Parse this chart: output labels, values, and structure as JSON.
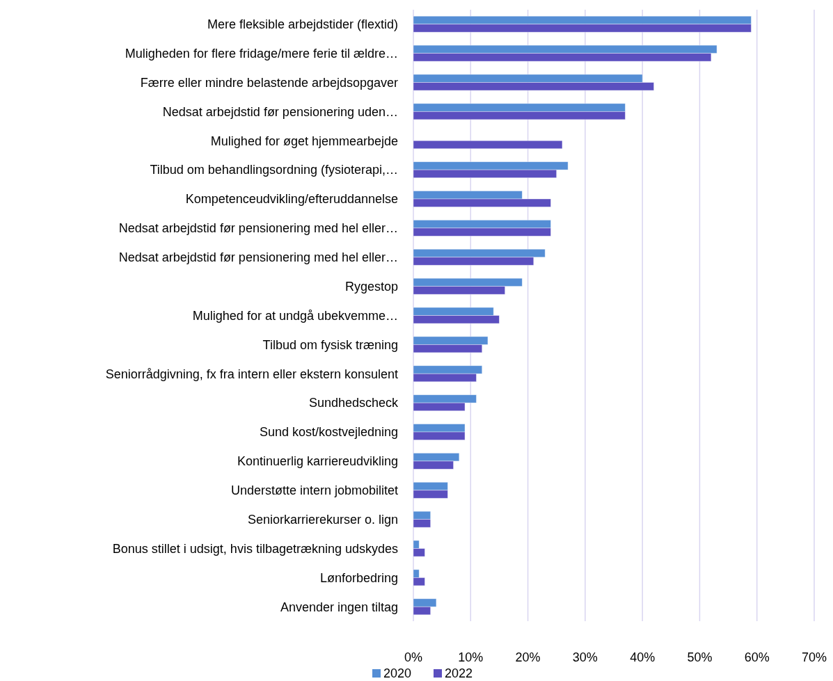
{
  "chart_data": {
    "type": "bar",
    "orientation": "horizontal",
    "categories": [
      "Mere fleksible arbejdstider (flextid)",
      "Muligheden for flere fridage/mere ferie til ældre…",
      "Færre eller mindre belastende arbejdsopgaver",
      "Nedsat arbejdstid før pensionering uden…",
      "Mulighed for øget hjemmearbejde",
      "Tilbud om behandlingsordning (fysioterapi,…",
      "Kompetenceudvikling/efteruddannelse",
      "Nedsat arbejdstid før pensionering med hel eller…",
      "Nedsat arbejdstid før pensionering med hel eller…",
      "Rygestop",
      "Mulighed for at undgå ubekvemme…",
      "Tilbud om fysisk træning",
      "Seniorrådgivning, fx fra intern eller ekstern konsulent",
      "Sundhedscheck",
      "Sund kost/kostvejledning",
      "Kontinuerlig karriereudvikling",
      "Understøtte intern jobmobilitet",
      "Seniorkarrierekurser o. lign",
      "Bonus stillet i udsigt, hvis tilbagetrækning udskydes",
      "Lønforbedring",
      "Anvender ingen tiltag"
    ],
    "series": [
      {
        "name": "2020",
        "color": "#558ed5",
        "values": [
          59,
          53,
          40,
          37,
          null,
          27,
          19,
          24,
          23,
          19,
          14,
          13,
          12,
          11,
          9,
          8,
          6,
          3,
          1,
          1,
          4
        ]
      },
      {
        "name": "2022",
        "color": "#5b4fbf",
        "values": [
          59,
          52,
          42,
          37,
          26,
          25,
          24,
          24,
          21,
          16,
          15,
          12,
          11,
          9,
          9,
          7,
          6,
          3,
          2,
          2,
          3
        ]
      }
    ],
    "xlim": [
      0,
      70
    ],
    "xticks": [
      {
        "value": 0,
        "label": "0%"
      },
      {
        "value": 10,
        "label": "10%"
      },
      {
        "value": 20,
        "label": "20%"
      },
      {
        "value": 30,
        "label": "30%"
      },
      {
        "value": 40,
        "label": "40%"
      },
      {
        "value": 50,
        "label": "50%"
      },
      {
        "value": 60,
        "label": "60%"
      },
      {
        "value": 70,
        "label": "70%"
      }
    ],
    "grid": "x",
    "legend": "bottom"
  }
}
